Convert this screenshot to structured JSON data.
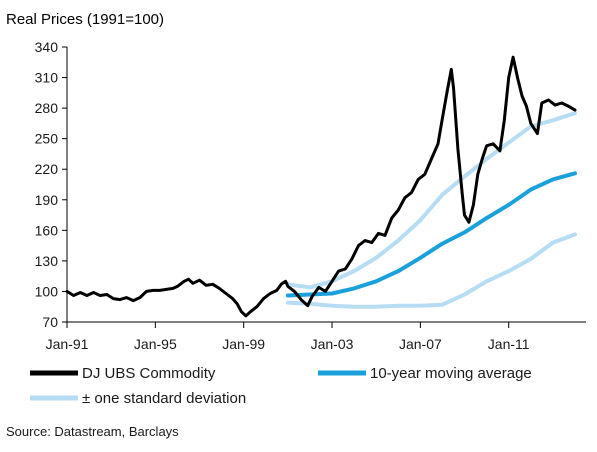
{
  "chart_data": {
    "type": "line",
    "title": "",
    "ylabel": "Real Prices (1991=100)",
    "xlabel": "",
    "source": "Source: Datastream, Barclays",
    "ylim": [
      70,
      340
    ],
    "yticks": [
      70,
      100,
      130,
      160,
      190,
      220,
      250,
      280,
      310,
      340
    ],
    "xlim": [
      1991.0,
      2014.5
    ],
    "xticks": [
      {
        "label": "Jan-91",
        "x": 1991.0
      },
      {
        "label": "Jan-95",
        "x": 1995.0
      },
      {
        "label": "Jan-99",
        "x": 1999.0
      },
      {
        "label": "Jan-03",
        "x": 2003.0
      },
      {
        "label": "Jan-07",
        "x": 2007.0
      },
      {
        "label": "Jan-11",
        "x": 2011.0
      }
    ],
    "grid": false,
    "legend_position": "bottom",
    "series": [
      {
        "name": "DJ UBS Commodity",
        "color": "#000000",
        "points": [
          [
            1991.0,
            100
          ],
          [
            1991.3,
            96
          ],
          [
            1991.6,
            99
          ],
          [
            1991.9,
            96
          ],
          [
            1992.2,
            99
          ],
          [
            1992.5,
            96
          ],
          [
            1992.8,
            97
          ],
          [
            1993.1,
            93
          ],
          [
            1993.4,
            92
          ],
          [
            1993.7,
            94
          ],
          [
            1994.0,
            91
          ],
          [
            1994.3,
            94
          ],
          [
            1994.6,
            100
          ],
          [
            1994.9,
            101
          ],
          [
            1995.2,
            101
          ],
          [
            1995.5,
            102
          ],
          [
            1995.8,
            103
          ],
          [
            1996.0,
            105
          ],
          [
            1996.3,
            110
          ],
          [
            1996.5,
            112
          ],
          [
            1996.7,
            108
          ],
          [
            1997.0,
            111
          ],
          [
            1997.3,
            106
          ],
          [
            1997.6,
            107
          ],
          [
            1997.9,
            103
          ],
          [
            1998.2,
            98
          ],
          [
            1998.5,
            93
          ],
          [
            1998.7,
            88
          ],
          [
            1998.9,
            80
          ],
          [
            1999.1,
            76
          ],
          [
            1999.3,
            80
          ],
          [
            1999.6,
            85
          ],
          [
            1999.9,
            93
          ],
          [
            2000.2,
            98
          ],
          [
            2000.5,
            101
          ],
          [
            2000.7,
            107
          ],
          [
            2000.9,
            110
          ],
          [
            2001.0,
            105
          ],
          [
            2001.3,
            100
          ],
          [
            2001.6,
            92
          ],
          [
            2001.9,
            86
          ],
          [
            2002.1,
            95
          ],
          [
            2002.4,
            104
          ],
          [
            2002.7,
            100
          ],
          [
            2003.0,
            110
          ],
          [
            2003.3,
            120
          ],
          [
            2003.6,
            122
          ],
          [
            2003.9,
            132
          ],
          [
            2004.2,
            145
          ],
          [
            2004.5,
            150
          ],
          [
            2004.8,
            148
          ],
          [
            2005.1,
            157
          ],
          [
            2005.4,
            155
          ],
          [
            2005.7,
            172
          ],
          [
            2006.0,
            180
          ],
          [
            2006.3,
            192
          ],
          [
            2006.6,
            197
          ],
          [
            2006.9,
            210
          ],
          [
            2007.2,
            215
          ],
          [
            2007.5,
            230
          ],
          [
            2007.8,
            245
          ],
          [
            2008.0,
            270
          ],
          [
            2008.2,
            295
          ],
          [
            2008.4,
            318
          ],
          [
            2008.5,
            300
          ],
          [
            2008.7,
            240
          ],
          [
            2008.9,
            195
          ],
          [
            2009.0,
            175
          ],
          [
            2009.2,
            168
          ],
          [
            2009.4,
            185
          ],
          [
            2009.6,
            215
          ],
          [
            2009.8,
            230
          ],
          [
            2010.0,
            243
          ],
          [
            2010.3,
            245
          ],
          [
            2010.6,
            238
          ],
          [
            2010.8,
            268
          ],
          [
            2011.0,
            310
          ],
          [
            2011.2,
            330
          ],
          [
            2011.4,
            310
          ],
          [
            2011.6,
            292
          ],
          [
            2011.8,
            282
          ],
          [
            2012.0,
            265
          ],
          [
            2012.3,
            255
          ],
          [
            2012.5,
            285
          ],
          [
            2012.8,
            288
          ],
          [
            2013.1,
            283
          ],
          [
            2013.4,
            285
          ],
          [
            2013.7,
            282
          ],
          [
            2014.0,
            278
          ]
        ]
      },
      {
        "name": "10-year moving average",
        "color": "#1aa1dc",
        "points": [
          [
            2001.0,
            96
          ],
          [
            2002.0,
            97
          ],
          [
            2003.0,
            98
          ],
          [
            2004.0,
            103
          ],
          [
            2005.0,
            110
          ],
          [
            2006.0,
            120
          ],
          [
            2007.0,
            133
          ],
          [
            2008.0,
            147
          ],
          [
            2009.0,
            158
          ],
          [
            2010.0,
            172
          ],
          [
            2011.0,
            185
          ],
          [
            2012.0,
            200
          ],
          [
            2013.0,
            210
          ],
          [
            2014.0,
            216
          ]
        ]
      },
      {
        "name": "± one standard deviation",
        "color": "#b6ddf3",
        "points": [
          [
            2001.0,
            107
          ],
          [
            2002.0,
            104
          ],
          [
            2003.0,
            110
          ],
          [
            2004.0,
            120
          ],
          [
            2005.0,
            133
          ],
          [
            2006.0,
            150
          ],
          [
            2007.0,
            170
          ],
          [
            2008.0,
            195
          ],
          [
            2009.0,
            213
          ],
          [
            2010.0,
            230
          ],
          [
            2011.0,
            246
          ],
          [
            2012.0,
            262
          ],
          [
            2013.0,
            268
          ],
          [
            2014.0,
            275
          ]
        ]
      },
      {
        "name": "",
        "color": "#b6ddf3",
        "points": [
          [
            2001.0,
            89
          ],
          [
            2002.0,
            88
          ],
          [
            2003.0,
            86
          ],
          [
            2004.0,
            85
          ],
          [
            2005.0,
            85
          ],
          [
            2006.0,
            86
          ],
          [
            2007.0,
            86
          ],
          [
            2008.0,
            87
          ],
          [
            2009.0,
            97
          ],
          [
            2010.0,
            110
          ],
          [
            2011.0,
            120
          ],
          [
            2012.0,
            132
          ],
          [
            2013.0,
            148
          ],
          [
            2014.0,
            156
          ]
        ]
      }
    ]
  }
}
